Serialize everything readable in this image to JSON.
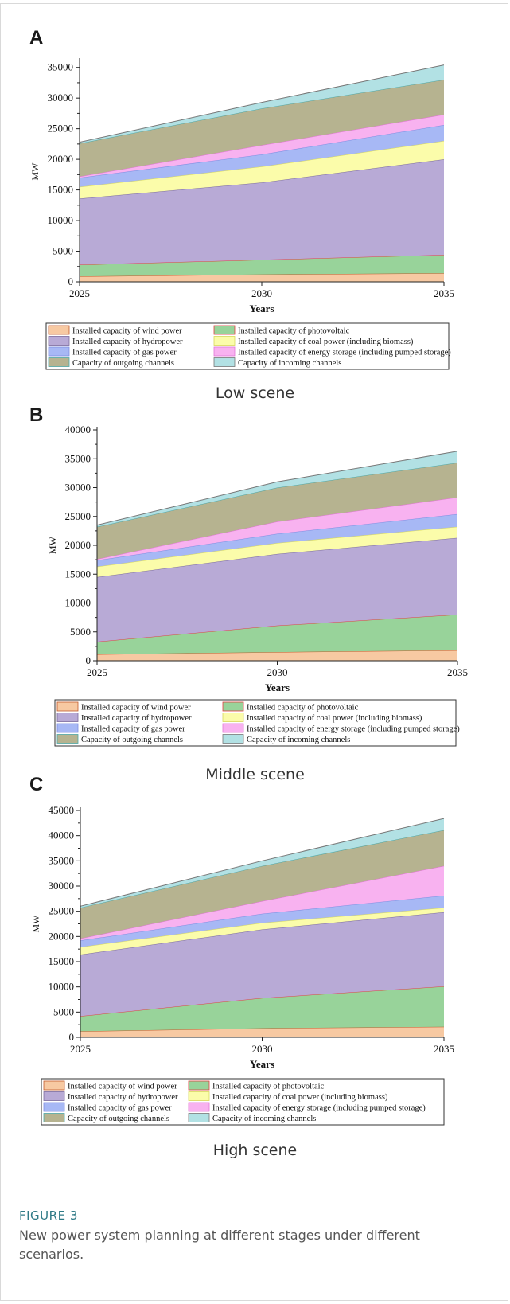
{
  "figure": {
    "label": "FIGURE 3",
    "caption": "New power system planning at different stages under different scenarios."
  },
  "legend_items": [
    "Installed capacity of wind power",
    "Installed capacity of photovoltaic",
    "Installed capacity of hydropower",
    "Installed capacity of coal power (including biomass)",
    "Installed capacity of gas power",
    "Installed capacity of energy storage (including pumped storage)",
    "Capacity of outgoing channels",
    "Capacity of incoming channels"
  ],
  "colors": {
    "fills": [
      "#f7c9a2",
      "#98d39a",
      "#b8aad6",
      "#fbfcaa",
      "#a7b8f5",
      "#f8b2f0",
      "#b6b390",
      "#b2e1e4"
    ],
    "lines": [
      "#c05a2b",
      "#e14040",
      "#7a6a9c",
      "#d8d85a",
      "#7e8de0",
      "#e275d6",
      "#4ca6a6",
      "#777777"
    ]
  },
  "chart_data": [
    {
      "type": "area",
      "stacked": true,
      "panel": "A",
      "caption": "Low scene",
      "x": [
        2025,
        2030,
        2035
      ],
      "xlabel": "Years",
      "ylabel": "MW",
      "ylim": [
        0,
        36000
      ],
      "yticks": [
        0,
        5000,
        10000,
        15000,
        20000,
        25000,
        30000,
        35000
      ],
      "series": [
        {
          "name": "Installed capacity of wind power",
          "values": [
            900,
            1200,
            1400
          ]
        },
        {
          "name": "Installed capacity of photovoltaic",
          "values": [
            1900,
            2400,
            3000
          ]
        },
        {
          "name": "Installed capacity of hydropower",
          "values": [
            10800,
            12600,
            15600
          ]
        },
        {
          "name": "Installed capacity of coal power (including biomass)",
          "values": [
            1900,
            2600,
            3000
          ]
        },
        {
          "name": "Installed capacity of gas power",
          "values": [
            1500,
            2000,
            2600
          ]
        },
        {
          "name": "Installed capacity of energy storage (including pumped storage)",
          "values": [
            200,
            1500,
            1700
          ]
        },
        {
          "name": "Capacity of outgoing channels",
          "values": [
            5400,
            6000,
            5700
          ]
        },
        {
          "name": "Capacity of incoming channels",
          "values": [
            200,
            1000,
            2400
          ]
        }
      ]
    },
    {
      "type": "area",
      "stacked": true,
      "panel": "B",
      "caption": "Middle scene",
      "x": [
        2025,
        2030,
        2035
      ],
      "xlabel": "Years",
      "ylabel": "MW",
      "ylim": [
        0,
        40000
      ],
      "yticks": [
        0,
        5000,
        10000,
        15000,
        20000,
        25000,
        30000,
        35000,
        40000
      ],
      "series": [
        {
          "name": "Installed capacity of wind power",
          "values": [
            1100,
            1500,
            1800
          ]
        },
        {
          "name": "Installed capacity of photovoltaic",
          "values": [
            2200,
            4600,
            6200
          ]
        },
        {
          "name": "Installed capacity of hydropower",
          "values": [
            11200,
            12400,
            13300
          ]
        },
        {
          "name": "Installed capacity of coal power (including biomass)",
          "values": [
            1800,
            1900,
            1900
          ]
        },
        {
          "name": "Installed capacity of gas power",
          "values": [
            1100,
            1600,
            2200
          ]
        },
        {
          "name": "Installed capacity of energy storage (including pumped storage)",
          "values": [
            200,
            2100,
            2900
          ]
        },
        {
          "name": "Capacity of outgoing channels",
          "values": [
            5600,
            5900,
            6000
          ]
        },
        {
          "name": "Capacity of incoming channels",
          "values": [
            300,
            1000,
            2000
          ]
        }
      ]
    },
    {
      "type": "area",
      "stacked": true,
      "panel": "C",
      "caption": "High scene",
      "x": [
        2025,
        2030,
        2035
      ],
      "xlabel": "Years",
      "ylabel": "MW",
      "ylim": [
        0,
        45000
      ],
      "yticks": [
        0,
        5000,
        10000,
        15000,
        20000,
        25000,
        30000,
        35000,
        40000,
        45000
      ],
      "series": [
        {
          "name": "Installed capacity of wind power",
          "values": [
            1200,
            1800,
            2100
          ]
        },
        {
          "name": "Installed capacity of photovoltaic",
          "values": [
            3000,
            6000,
            8000
          ]
        },
        {
          "name": "Installed capacity of hydropower",
          "values": [
            12200,
            13600,
            14700
          ]
        },
        {
          "name": "Installed capacity of coal power (including biomass)",
          "values": [
            1500,
            1300,
            900
          ]
        },
        {
          "name": "Installed capacity of gas power",
          "values": [
            1300,
            1800,
            2400
          ]
        },
        {
          "name": "Installed capacity of energy storage (including pumped storage)",
          "values": [
            400,
            2500,
            5900
          ]
        },
        {
          "name": "Capacity of outgoing channels",
          "values": [
            6100,
            7000,
            7100
          ]
        },
        {
          "name": "Capacity of incoming channels",
          "values": [
            300,
            1000,
            2300
          ]
        }
      ]
    }
  ]
}
